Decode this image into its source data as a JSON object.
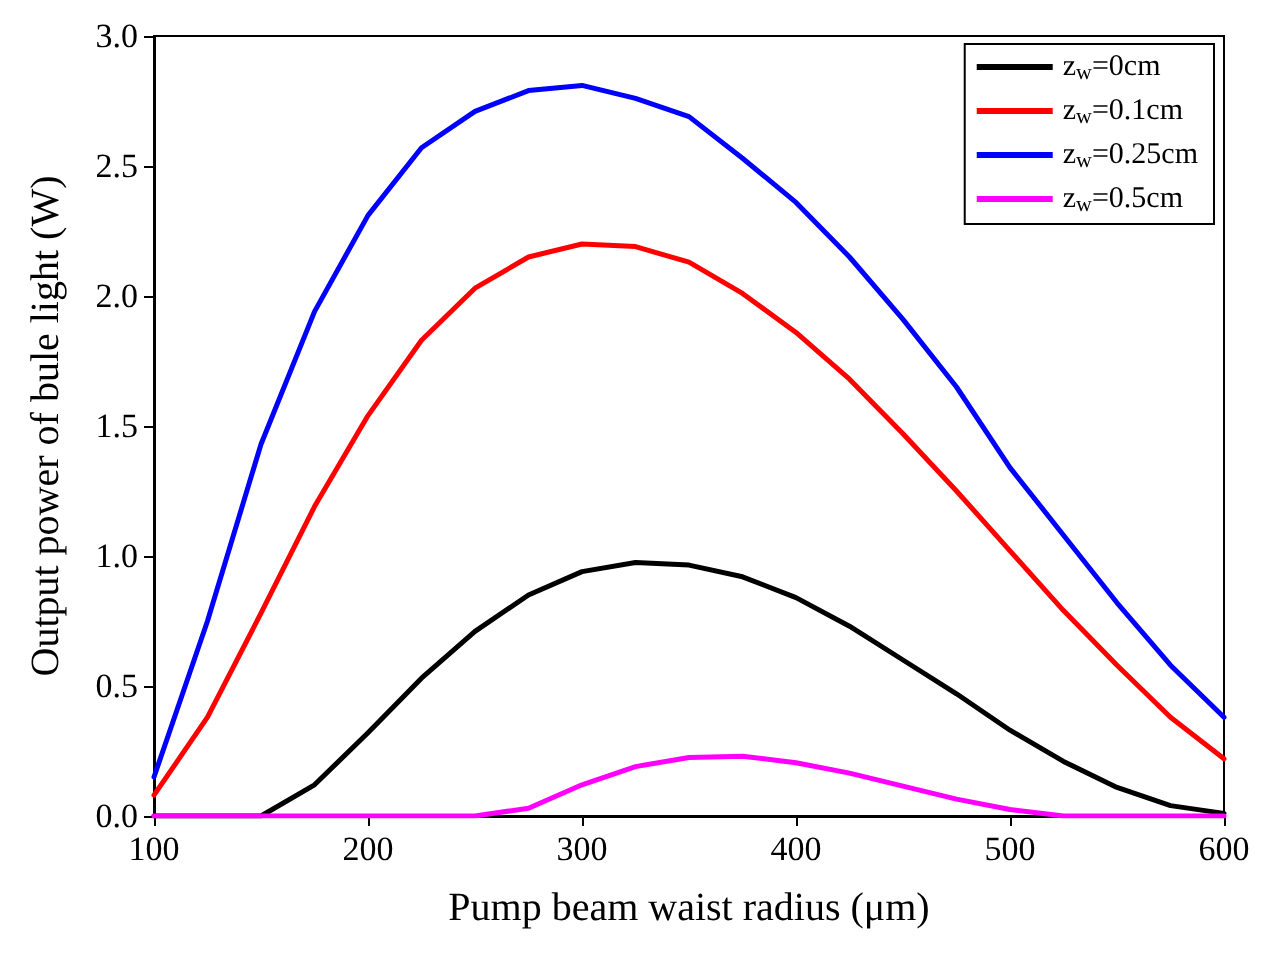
{
  "chart_data": {
    "type": "line",
    "xlabel": "Pump beam waist radius (μm)",
    "ylabel": "Output power of bule light (W)",
    "x": [
      100,
      125,
      150,
      175,
      200,
      225,
      250,
      275,
      300,
      325,
      350,
      375,
      400,
      425,
      450,
      475,
      500,
      525,
      550,
      575,
      600
    ],
    "xlim": [
      100,
      600
    ],
    "xticks": [
      100,
      200,
      300,
      400,
      500,
      600
    ],
    "ylim": [
      0,
      3.0
    ],
    "yticks": [
      {
        "value": 0,
        "label": "0.0"
      },
      {
        "value": 0.5,
        "label": "0.5"
      },
      {
        "value": 1,
        "label": "1.0"
      },
      {
        "value": 1.5,
        "label": "1.5"
      },
      {
        "value": 2,
        "label": "2.0"
      },
      {
        "value": 2.5,
        "label": "2.5"
      },
      {
        "value": 3,
        "label": "3.0"
      }
    ],
    "grid": false,
    "legend": "top right",
    "marker": "none",
    "line_style": "solid",
    "series": [
      {
        "name": "z$_{w}$=0cm",
        "color": "#000000",
        "values": [
          0,
          0,
          0,
          0.12,
          0.32,
          0.53,
          0.71,
          0.85,
          0.94,
          0.975,
          0.965,
          0.92,
          0.84,
          0.73,
          0.6,
          0.47,
          0.33,
          0.21,
          0.11,
          0.04,
          0.01
        ]
      },
      {
        "name": "z$_{w}$=0.1cm",
        "color": "#ff0000",
        "values": [
          0.08,
          0.38,
          0.78,
          1.19,
          1.54,
          1.83,
          2.03,
          2.15,
          2.2,
          2.19,
          2.13,
          2.01,
          1.86,
          1.68,
          1.47,
          1.25,
          1.02,
          0.79,
          0.58,
          0.38,
          0.22
        ]
      },
      {
        "name": "z$_{w}$=0.25cm",
        "color": "#0000ff",
        "values": [
          0.15,
          0.75,
          1.43,
          1.94,
          2.31,
          2.57,
          2.71,
          2.79,
          2.81,
          2.76,
          2.69,
          2.53,
          2.36,
          2.15,
          1.91,
          1.65,
          1.34,
          1.08,
          0.82,
          0.58,
          0.38
        ]
      },
      {
        "name": "z$_{w}$=0.5cm",
        "color": "#ff00ff",
        "values": [
          0,
          0,
          0,
          0,
          0,
          0,
          0,
          0.03,
          0.12,
          0.19,
          0.225,
          0.23,
          0.205,
          0.165,
          0.115,
          0.065,
          0.025,
          0,
          0,
          0,
          0
        ]
      }
    ]
  }
}
